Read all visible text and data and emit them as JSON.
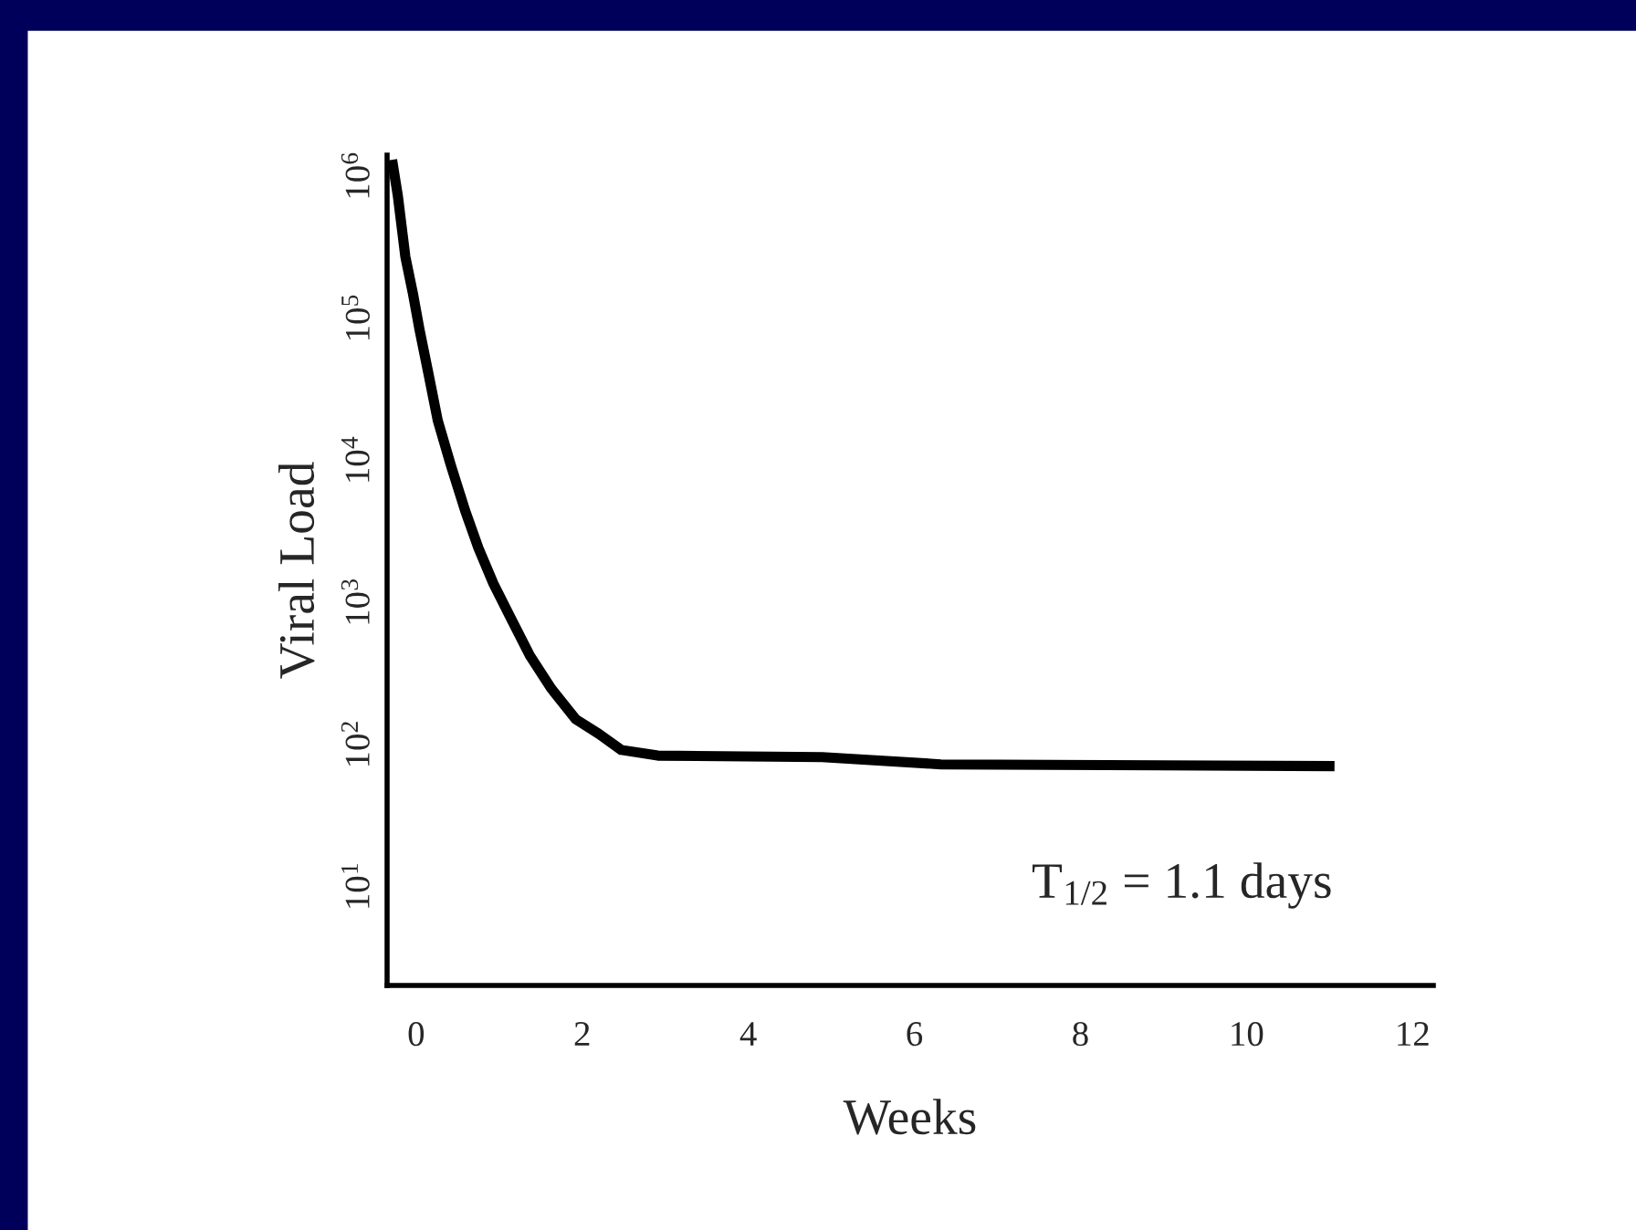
{
  "chart_data": {
    "type": "line",
    "xlabel": "Weeks",
    "ylabel": "Viral Load",
    "log": true,
    "x": [
      -0.29,
      -0.22,
      -0.13,
      -0.04,
      0.04,
      0.15,
      0.26,
      0.42,
      0.59,
      0.75,
      0.93,
      1.15,
      1.37,
      1.63,
      1.92,
      2.2,
      2.47,
      2.91,
      4.89,
      6.32,
      11.06
    ],
    "series": [
      {
        "color": "#000000",
        "values": [
          1300000,
          720000,
          270000,
          150000,
          83000,
          40000,
          19000,
          9100,
          4400,
          2400,
          1350,
          750,
          420,
          245,
          150,
          118,
          91,
          83,
          81,
          72,
          70
        ]
      }
    ],
    "xlim": [
      -0.35,
      12.25
    ],
    "ylim": [
      2,
      1400000
    ],
    "xticks": [
      0,
      2,
      4,
      6,
      8,
      10,
      12
    ],
    "yticks": [
      {
        "value": 10,
        "label": "10$^{1}$"
      },
      {
        "value": 100,
        "label": "10$^{2}$"
      },
      {
        "value": 1000,
        "label": "10$^{3}$"
      },
      {
        "value": 10000,
        "label": "10$^{4}$"
      },
      {
        "value": 100000,
        "label": "10$^{5}$"
      },
      {
        "value": 1000000,
        "label": "10$^{6}$"
      }
    ],
    "annotations": [
      "T$_{1/2}$ = 1.1 days"
    ],
    "grid": false,
    "legend": false,
    "marker": "none",
    "line_style": "solid"
  }
}
